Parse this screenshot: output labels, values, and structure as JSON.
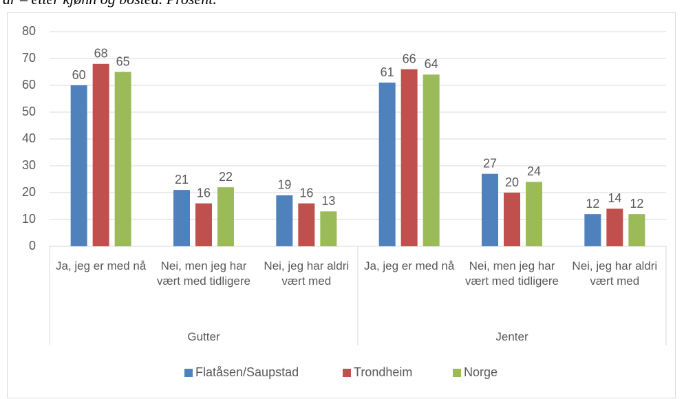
{
  "chart_data": {
    "type": "bar",
    "caption": "år – etter kjønn og bosted. Prosent.",
    "categories": [
      "Ja, jeg er med nå",
      "Nei, men jeg har vært med tidligere",
      "Nei, jeg har aldri vært med",
      "Ja, jeg er med nå",
      "Nei, men jeg har vært med tidligere",
      "Nei, jeg har aldri vært med"
    ],
    "groups": [
      "Gutter",
      "Jenter"
    ],
    "series": [
      {
        "name": "Flatåsen/Saupstad",
        "color": "#4f81bd",
        "values": [
          60,
          21,
          19,
          61,
          27,
          12
        ]
      },
      {
        "name": "Trondheim",
        "color": "#c0504d",
        "values": [
          68,
          16,
          16,
          66,
          20,
          14
        ]
      },
      {
        "name": "Norge",
        "color": "#9bbb59",
        "values": [
          65,
          22,
          13,
          64,
          24,
          12
        ]
      }
    ],
    "ylim": [
      0,
      80
    ],
    "yticks": [
      0,
      10,
      20,
      30,
      40,
      50,
      60,
      70,
      80
    ],
    "grid": true,
    "legend": "bottom"
  }
}
